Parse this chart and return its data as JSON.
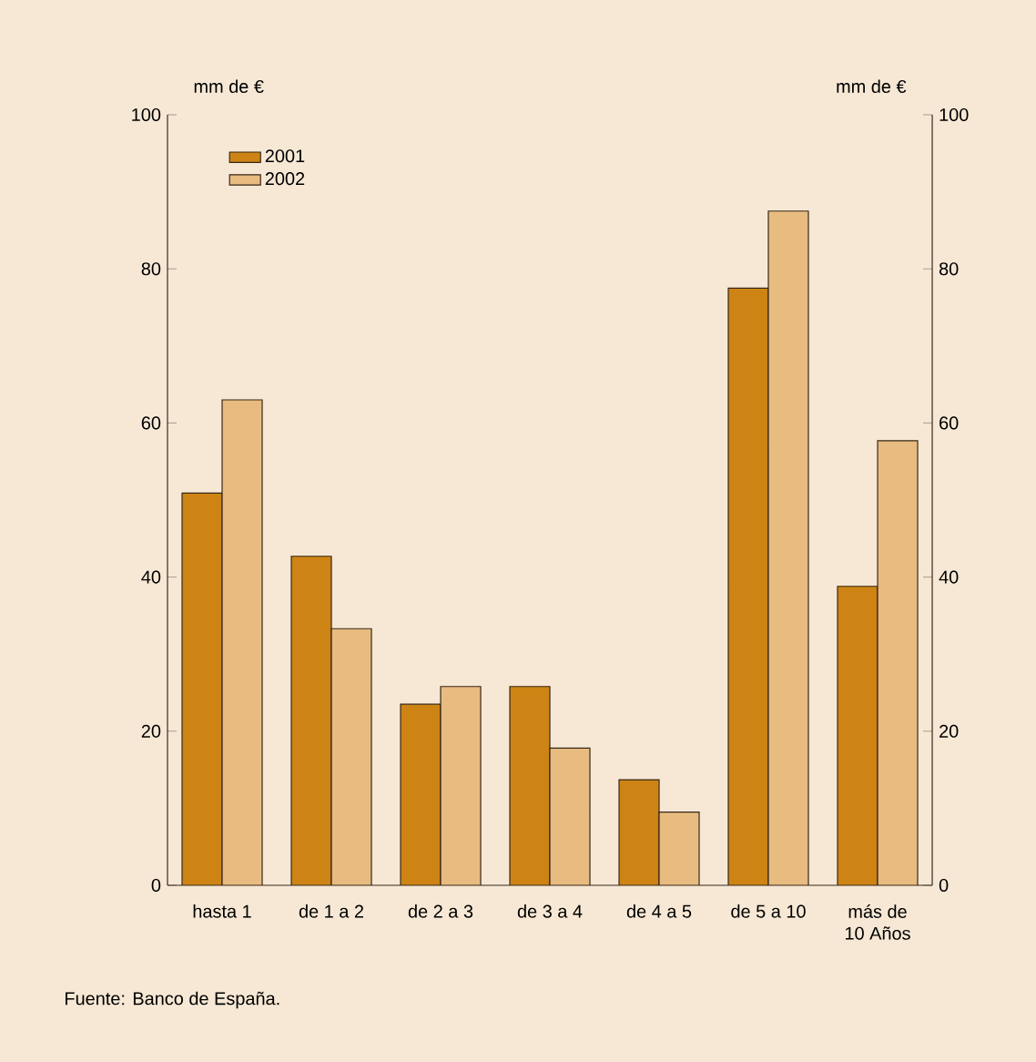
{
  "chart_data": {
    "type": "bar",
    "ylabel": "mm de €",
    "y2label": "mm de €",
    "categories": [
      "hasta 1",
      "de 1 a 2",
      "de 2 a 3",
      "de 3 a 4",
      "de 4 a 5",
      "de 5 a 10",
      "más de 10 Años"
    ],
    "series": [
      {
        "name": "2001",
        "color": "#cd8415",
        "values": [
          50.9,
          42.7,
          23.5,
          25.8,
          13.7,
          77.5,
          38.8
        ]
      },
      {
        "name": "2002",
        "color": "#e8bb80",
        "values": [
          63.0,
          33.3,
          25.8,
          17.8,
          9.5,
          87.5,
          57.7
        ]
      }
    ],
    "ylim": [
      0,
      100
    ],
    "yticks": [
      0,
      20,
      40,
      60,
      80,
      100
    ],
    "y2lim": [
      0,
      100
    ],
    "y2ticks": [
      0,
      20,
      40,
      60,
      80,
      100
    ],
    "legend": "top left",
    "annotations": [
      "Fuente: Banco de España."
    ]
  }
}
